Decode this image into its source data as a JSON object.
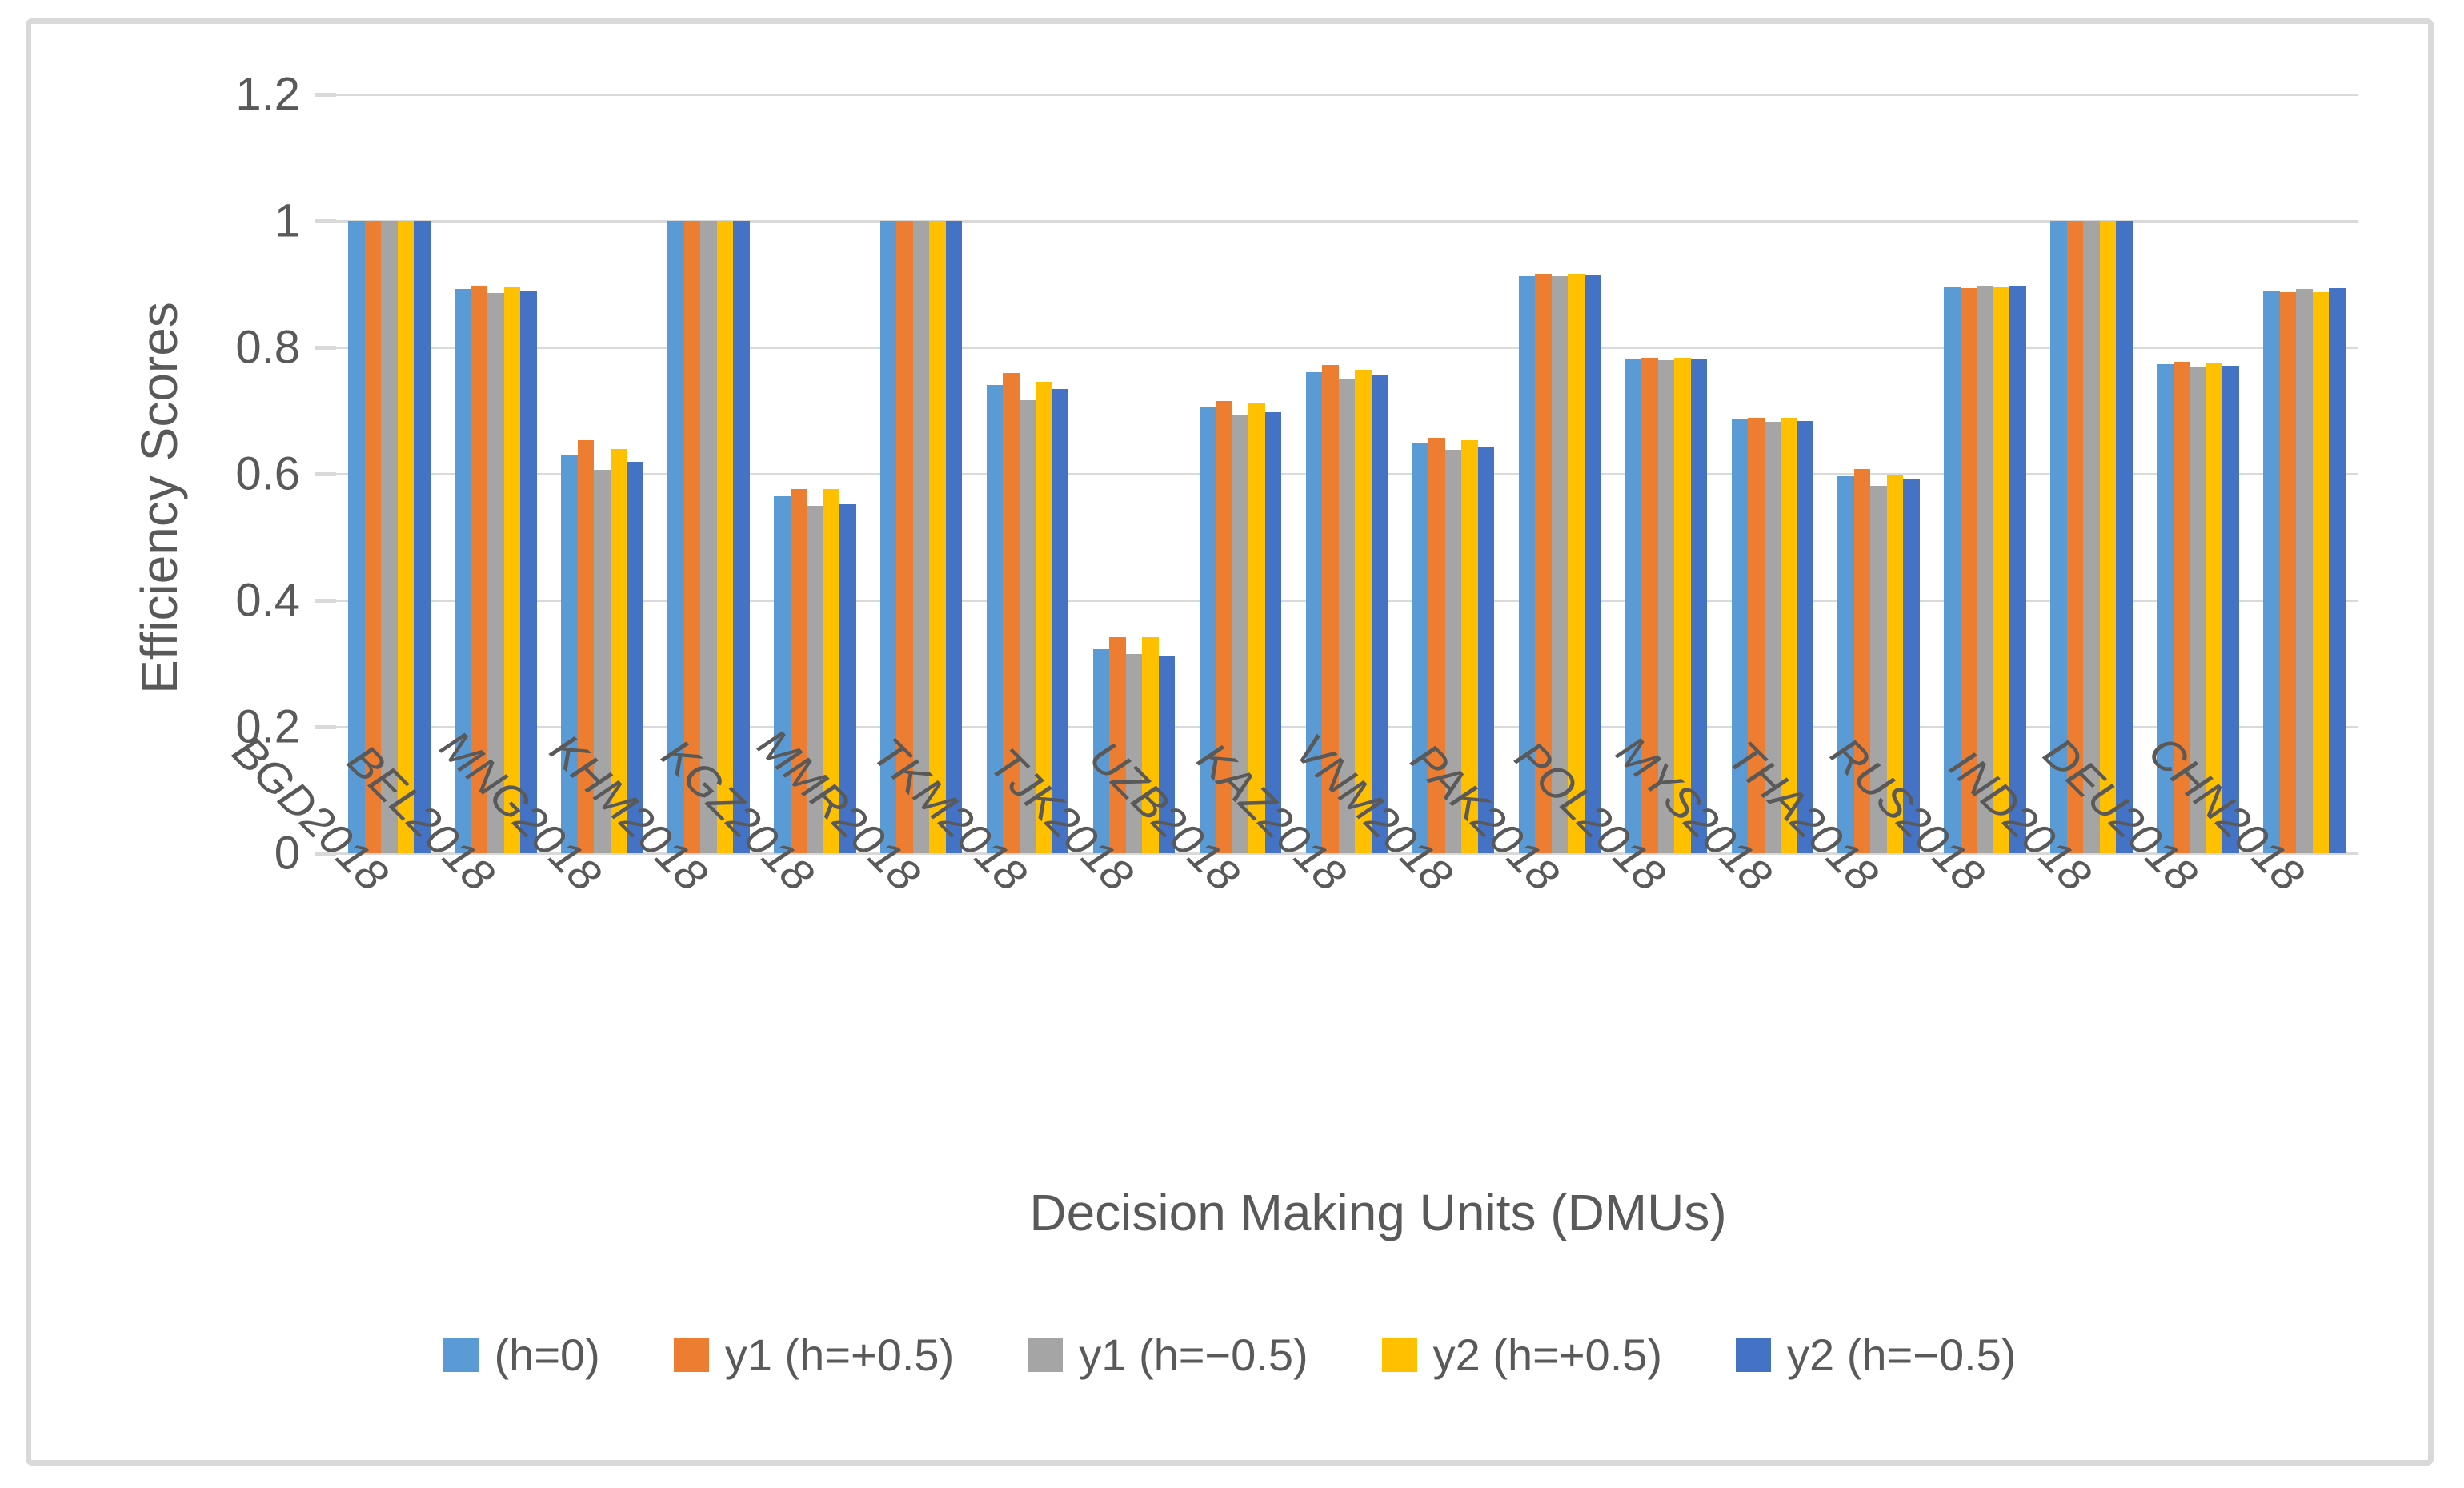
{
  "chart_data": {
    "type": "bar",
    "xlabel": "Decision Making Units (DMUs)",
    "ylabel": "Efficiency Scores",
    "ylim": [
      0,
      1.2
    ],
    "yticks": [
      1.2,
      1.0,
      0.8,
      0.6,
      0.4,
      0.2,
      0
    ],
    "ytick_labels": [
      "1.2",
      "1",
      "0.8",
      "0.6",
      "0.4",
      "0.2",
      "0"
    ],
    "grid": true,
    "gridline_color": "#D9D9D9",
    "text_color": "#595959",
    "legend_position": "bottom",
    "categories": [
      "BGD2018",
      "BEL2018",
      "MNG2018",
      "KHM2018",
      "KGZ2018",
      "MMR2018",
      "TKM2018",
      "TJK2018",
      "UZB2018",
      "KAZ2018",
      "VNM2018",
      "PAK2018",
      "POL2018",
      "MYS2018",
      "THA2018",
      "RUS2018",
      "IND2018",
      "DEU2018",
      "CHN2018"
    ],
    "series": [
      {
        "name": "(h=0)",
        "color": "#5B9BD5",
        "values": [
          1.0,
          0.893,
          0.629,
          1.0,
          0.565,
          1.0,
          0.74,
          0.323,
          0.705,
          0.761,
          0.649,
          0.913,
          0.782,
          0.686,
          0.596,
          0.896,
          1.0,
          0.773,
          0.889
        ]
      },
      {
        "name": "y1 (h=+0.5)",
        "color": "#ED7D31",
        "values": [
          1.0,
          0.898,
          0.653,
          1.0,
          0.576,
          1.0,
          0.76,
          0.342,
          0.715,
          0.772,
          0.657,
          0.916,
          0.784,
          0.688,
          0.607,
          0.894,
          1.0,
          0.777,
          0.887
        ]
      },
      {
        "name": "y1 (h=−0.5)",
        "color": "#A5A5A5",
        "values": [
          1.0,
          0.886,
          0.606,
          1.0,
          0.549,
          1.0,
          0.716,
          0.315,
          0.694,
          0.751,
          0.638,
          0.913,
          0.78,
          0.682,
          0.581,
          0.898,
          1.0,
          0.77,
          0.893
        ]
      },
      {
        "name": "y2 (h=+0.5)",
        "color": "#FFC000",
        "values": [
          1.0,
          0.896,
          0.639,
          1.0,
          0.576,
          1.0,
          0.745,
          0.342,
          0.711,
          0.765,
          0.653,
          0.916,
          0.784,
          0.689,
          0.598,
          0.895,
          1.0,
          0.775,
          0.887
        ]
      },
      {
        "name": "y2 (h=−0.5)",
        "color": "#4472C4",
        "values": [
          1.0,
          0.888,
          0.619,
          1.0,
          0.552,
          1.0,
          0.734,
          0.312,
          0.698,
          0.756,
          0.642,
          0.914,
          0.781,
          0.684,
          0.591,
          0.898,
          1.0,
          0.771,
          0.894
        ]
      }
    ]
  }
}
